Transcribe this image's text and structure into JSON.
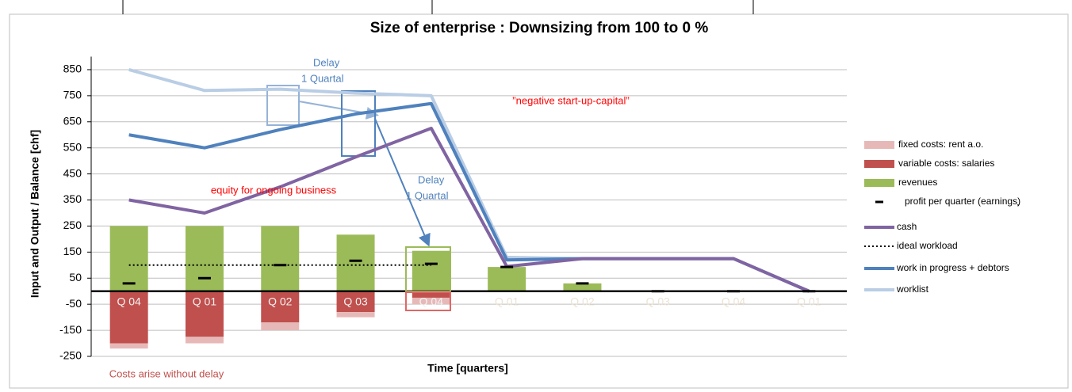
{
  "chart_data": {
    "type": "bar",
    "title": "Size of enterprise : Downsizing from 100 to 0 %",
    "y_label": "Input and Output / Balance [chf]",
    "x_label": "Time [quarters]",
    "categories": [
      "Q 04",
      "Q 01",
      "Q 02",
      "Q 03",
      "Q 04",
      "Q 01",
      "Q 02",
      "Q 03",
      "Q 04",
      "Q 01"
    ],
    "ylim": [
      -250,
      900
    ],
    "yticks": [
      -250,
      -150,
      -50,
      50,
      150,
      250,
      350,
      450,
      550,
      650,
      750,
      850
    ],
    "grid": true,
    "legend": "right",
    "series": [
      {
        "name": "fixed costs: rent a.o.",
        "color": "#e6b9b8",
        "style": "bar",
        "values": [
          -20,
          -25,
          -30,
          -20,
          -25,
          0,
          0,
          0,
          0,
          0
        ]
      },
      {
        "name": "variable costs: salaries",
        "color": "#c0504d",
        "style": "bar",
        "values": [
          -200,
          -175,
          -120,
          -80,
          -25,
          0,
          0,
          0,
          0,
          0
        ]
      },
      {
        "name": "revenues",
        "color": "#9bbb59",
        "style": "bar",
        "values": [
          250,
          250,
          250,
          217,
          155,
          93,
          30,
          0,
          0,
          0
        ]
      },
      {
        "name": "profit per quarter (earnings)",
        "color": "#000000",
        "style": "dash",
        "values": [
          30,
          50,
          100,
          117,
          105,
          93,
          30,
          0,
          0,
          0
        ]
      },
      {
        "name": "cash",
        "color": "#8064a2",
        "style": "line",
        "values": [
          350,
          300,
          400,
          515,
          625,
          95,
          125,
          125,
          125,
          0
        ]
      },
      {
        "name": "ideal workload",
        "color": "#000000",
        "style": "dotted",
        "values": [
          100,
          100,
          100,
          100,
          100,
          null,
          null,
          null,
          null,
          null
        ]
      },
      {
        "name": "work in progress + debtors",
        "color": "#4f81bd",
        "style": "line",
        "values": [
          600,
          550,
          620,
          680,
          720,
          120,
          125,
          125,
          125,
          0
        ]
      },
      {
        "name": "worklist",
        "color": "#b9cde5",
        "style": "line",
        "values": [
          850,
          770,
          775,
          760,
          750,
          130,
          125,
          125,
          125,
          0
        ]
      }
    ],
    "annotations": [
      {
        "text": "Delay",
        "color": "#4f81bd"
      },
      {
        "text": "1 Quartal",
        "color": "#4f81bd"
      },
      {
        "text": "Delay",
        "color": "#4f81bd"
      },
      {
        "text": "1 Quartal",
        "color": "#4f81bd"
      },
      {
        "text": "”negative start-up-capital”",
        "color": "#ff0000"
      },
      {
        "text": "equity for ongoing business",
        "color": "#ff0000"
      },
      {
        "text": "Costs arise without delay",
        "color": "#c0504d"
      },
      {
        "text": ".",
        "color": "#000000"
      }
    ]
  }
}
